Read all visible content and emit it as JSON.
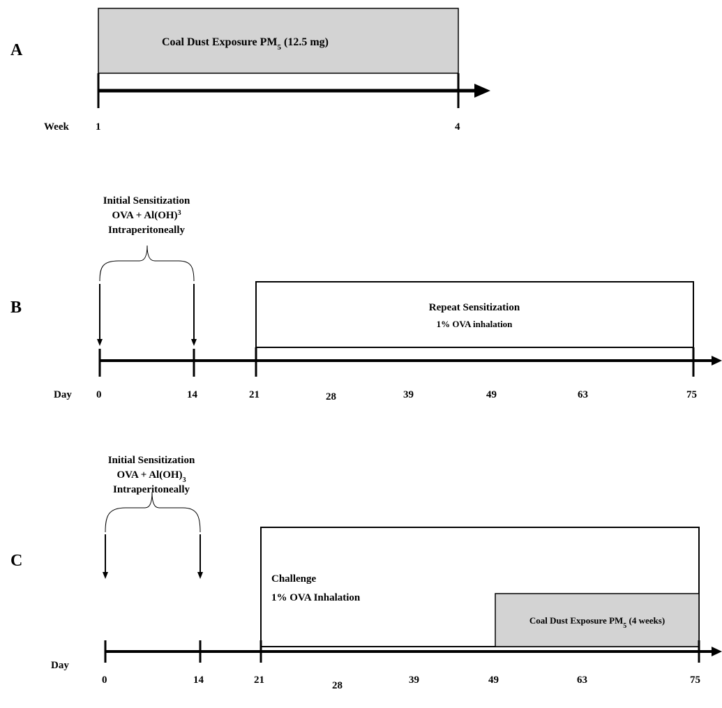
{
  "panels": {
    "a": {
      "letter": "A",
      "axis_label": "Week",
      "ticks": [
        "1",
        "4"
      ],
      "box_text_main": "Coal Dust Exposure PM",
      "box_text_sub": "5",
      "box_text_tail": " (12.5 mg)"
    },
    "b": {
      "letter": "B",
      "axis_label": "Day",
      "ticks": [
        "0",
        "14",
        "21",
        "28",
        "39",
        "49",
        "63",
        "75"
      ],
      "initial": {
        "line1": "Initial Sensitization",
        "line2_main": "OVA + Al(OH)",
        "line2_sup": "3",
        "line3": "Intraperitoneally"
      },
      "repeat": {
        "line1": "Repeat Sensitization",
        "line2": "1% OVA inhalation"
      }
    },
    "c": {
      "letter": "C",
      "axis_label": "Day",
      "ticks": [
        "0",
        "14",
        "21",
        "28",
        "39",
        "49",
        "63",
        "75"
      ],
      "initial": {
        "line1": "Initial Sensitization",
        "line2_main": "OVA + Al(OH)",
        "line2_sub": "3",
        "line3": "Intraperitoneally"
      },
      "challenge": {
        "line1": "Challenge",
        "line2": "1% OVA Inhalation"
      },
      "coal": {
        "text_main": "Coal Dust Exposure PM",
        "text_sub": "5",
        "text_tail": " (4 weeks)"
      }
    }
  },
  "colors": {
    "shaded_box": "#d3d3d3",
    "line": "#000000"
  }
}
